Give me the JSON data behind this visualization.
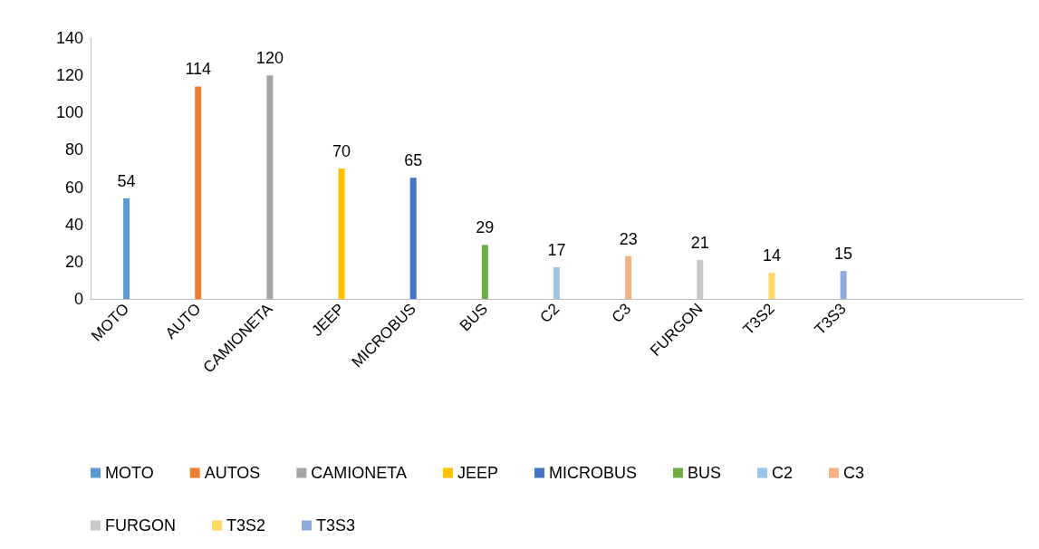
{
  "chart_data": {
    "type": "bar",
    "categories": [
      "MOTO",
      "AUTO",
      "CAMIONETA",
      "JEEP",
      "MICROBUS",
      "BUS",
      "C2",
      "C3",
      "FURGON",
      "T3S2",
      "T3S3",
      null,
      null
    ],
    "series": [
      {
        "name": "MOTO",
        "color": "#5b9bd5",
        "values": [
          54,
          null,
          null,
          null,
          null,
          null,
          null,
          null,
          null,
          null,
          null,
          null,
          null
        ]
      },
      {
        "name": "AUTOS",
        "color": "#ed7d31",
        "values": [
          null,
          114,
          null,
          null,
          null,
          null,
          null,
          null,
          null,
          null,
          null,
          null,
          null
        ]
      },
      {
        "name": "CAMIONETA",
        "color": "#a5a5a5",
        "values": [
          null,
          null,
          120,
          null,
          null,
          null,
          null,
          null,
          null,
          null,
          null,
          null,
          null
        ]
      },
      {
        "name": "JEEP",
        "color": "#ffc000",
        "values": [
          null,
          null,
          null,
          70,
          null,
          null,
          null,
          null,
          null,
          null,
          null,
          null,
          null
        ]
      },
      {
        "name": "MICROBUS",
        "color": "#4472c4",
        "values": [
          null,
          null,
          null,
          null,
          65,
          null,
          null,
          null,
          null,
          null,
          null,
          null,
          null
        ]
      },
      {
        "name": "BUS",
        "color": "#70ad47",
        "values": [
          null,
          null,
          null,
          null,
          null,
          29,
          null,
          null,
          null,
          null,
          null,
          null,
          null
        ]
      },
      {
        "name": "C2",
        "color": "#9dc3e6",
        "values": [
          null,
          null,
          null,
          null,
          null,
          null,
          17,
          null,
          null,
          null,
          null,
          null,
          null
        ]
      },
      {
        "name": "C3",
        "color": "#f4b183",
        "values": [
          null,
          null,
          null,
          null,
          null,
          null,
          null,
          23,
          null,
          null,
          null,
          null,
          null
        ]
      },
      {
        "name": "FURGON",
        "color": "#c9c9c9",
        "values": [
          null,
          null,
          null,
          null,
          null,
          null,
          null,
          null,
          21,
          null,
          null,
          null,
          null
        ]
      },
      {
        "name": "T3S2",
        "color": "#ffd966",
        "values": [
          null,
          null,
          null,
          null,
          null,
          null,
          null,
          null,
          null,
          14,
          null,
          null,
          null
        ]
      },
      {
        "name": "T3S3",
        "color": "#8faadc",
        "values": [
          null,
          null,
          null,
          null,
          null,
          null,
          null,
          null,
          null,
          null,
          15,
          null,
          null
        ]
      }
    ],
    "ylim": [
      0,
      140
    ],
    "yticks": [
      0,
      20,
      40,
      60,
      80,
      100,
      120,
      140
    ],
    "grid": false,
    "legend": "bottom",
    "data_labels": true
  }
}
